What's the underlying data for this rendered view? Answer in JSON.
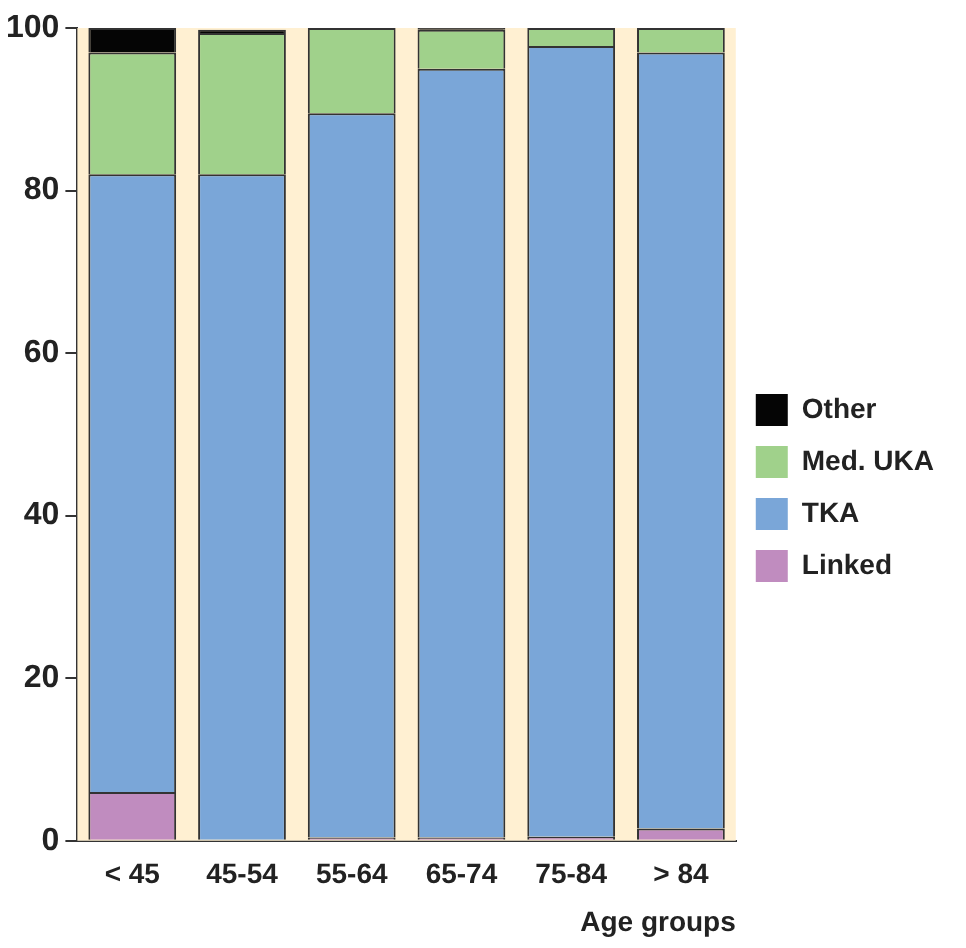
{
  "chart_data": {
    "type": "bar",
    "stacked": true,
    "xlabel": "Age groups",
    "categories": [
      "< 45",
      "45-54",
      "55-64",
      "65-74",
      "75-84",
      "> 84"
    ],
    "series": [
      {
        "name": "Linked",
        "color": "#c08cbf",
        "values": [
          6,
          null,
          0.4,
          0.4,
          0.5,
          1.5
        ]
      },
      {
        "name": "TKA",
        "color": "#7aa6d8",
        "values": [
          76,
          82,
          89.1,
          94.6,
          97.3,
          95.5
        ]
      },
      {
        "name": "Med. UKA",
        "color": "#a0d18b",
        "values": [
          15,
          17.4,
          10.5,
          4.8,
          2.2,
          3
        ]
      },
      {
        "name": "Other",
        "color": "#050505",
        "values": [
          3,
          0.4,
          0,
          0.2,
          0,
          0
        ]
      }
    ],
    "bands": [
      {
        "axis": "y",
        "from": 0,
        "to": 100,
        "color": "#fff0d2"
      }
    ],
    "ylim": [
      0,
      100
    ],
    "yticks": [
      0,
      20,
      40,
      60,
      80,
      100
    ],
    "grid": false,
    "legend": "right"
  }
}
